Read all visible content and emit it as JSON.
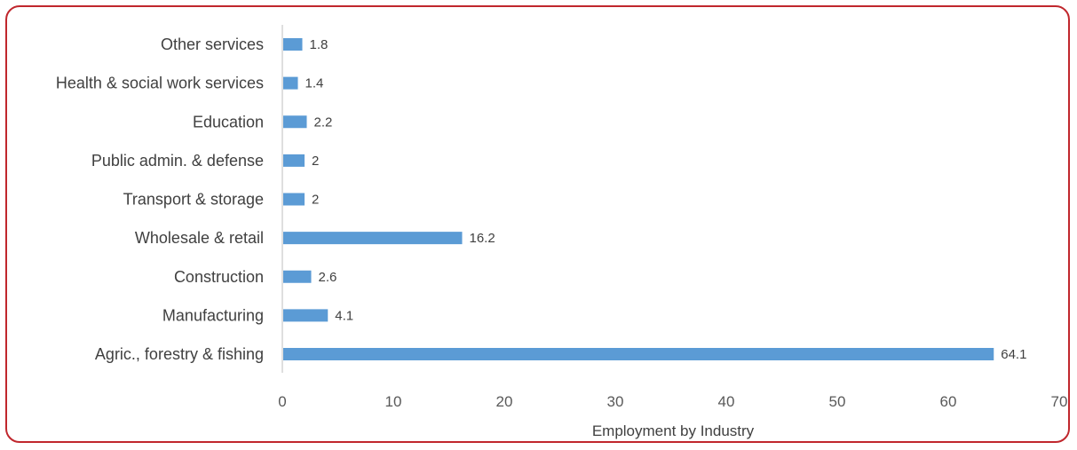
{
  "chart_data": {
    "type": "bar",
    "orientation": "horizontal",
    "categories": [
      "Agric., forestry & fishing",
      "Manufacturing",
      "Construction",
      "Wholesale & retail",
      "Transport & storage",
      "Public admin. & defense",
      "Education",
      "Health & social work services",
      "Other services"
    ],
    "values": [
      64.1,
      4.1,
      2.6,
      16.2,
      2,
      2,
      2.2,
      1.4,
      1.8
    ],
    "data_labels": [
      "64.1",
      "4.1",
      "2.6",
      "16.2",
      "2",
      "2",
      "2.2",
      "1.4",
      "1.8"
    ],
    "title": "",
    "xlabel": "Employment by Industry",
    "ylabel": "",
    "xlim": [
      0,
      70
    ],
    "xticks": [
      "0",
      "10",
      "20",
      "30",
      "40",
      "50",
      "60",
      "70"
    ],
    "bar_color": "#5b9bd5",
    "border_color": "#c0272d",
    "grid": false,
    "legend": "none"
  }
}
